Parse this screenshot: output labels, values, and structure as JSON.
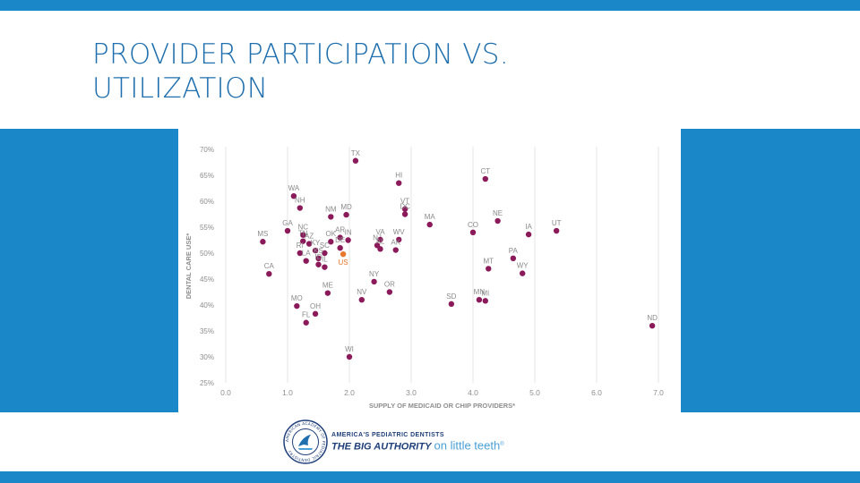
{
  "slide": {
    "title_line1": "PROVIDER PARTICIPATION VS.",
    "title_line2": "UTILIZATION"
  },
  "logo": {
    "seal_text": "AMERICAN ACADEMY OF PEDIATRIC DENTISTRY",
    "line1": "AMERICA'S PEDIATRIC DENTISTS",
    "line2_strong": "THE BIG AUTHORITY",
    "line2_light": "on little teeth",
    "trademark": "®"
  },
  "colors": {
    "brand_blue": "#1a87c8",
    "title_blue": "#1f6fae",
    "point": "#8b1a5a",
    "us_point": "#e8762c",
    "axis_text": "#8e8e8e",
    "grid": "#e4e4e4"
  },
  "chart_data": {
    "type": "scatter",
    "xlabel": "SUPPLY OF MEDICAID OR CHIP PROVIDERS*",
    "ylabel": "DENTAL CARE USE*",
    "xlim": [
      0,
      7
    ],
    "ylim": [
      25,
      70
    ],
    "xticks": [
      "0.0",
      "1.0",
      "2.0",
      "3.0",
      "4.0",
      "5.0",
      "6.0",
      "7.0"
    ],
    "yticks": [
      "25%",
      "30%",
      "35%",
      "40%",
      "45%",
      "50%",
      "55%",
      "60%",
      "65%",
      "70%"
    ],
    "grid": "vertical",
    "points": [
      {
        "label": "TX",
        "x": 2.1,
        "y": 67.8
      },
      {
        "label": "HI",
        "x": 2.8,
        "y": 63.5
      },
      {
        "label": "CT",
        "x": 4.2,
        "y": 64.3
      },
      {
        "label": "WA",
        "x": 1.1,
        "y": 61.0
      },
      {
        "label": "NH",
        "x": 1.2,
        "y": 58.7
      },
      {
        "label": "NM",
        "x": 1.7,
        "y": 57.0
      },
      {
        "label": "MD",
        "x": 1.95,
        "y": 57.4
      },
      {
        "label": "VT",
        "x": 2.9,
        "y": 58.5
      },
      {
        "label": "MA",
        "x": 3.3,
        "y": 55.5
      },
      {
        "label": "NE",
        "x": 4.4,
        "y": 56.2
      },
      {
        "label": "CO",
        "x": 4.0,
        "y": 54.0
      },
      {
        "label": "IA",
        "x": 4.9,
        "y": 53.6
      },
      {
        "label": "UT",
        "x": 5.35,
        "y": 54.3
      },
      {
        "label": "MS",
        "x": 0.6,
        "y": 52.2
      },
      {
        "label": "GA",
        "x": 1.0,
        "y": 54.3
      },
      {
        "label": "NC",
        "x": 1.25,
        "y": 53.5
      },
      {
        "label": "TN",
        "x": 1.25,
        "y": 52.3
      },
      {
        "label": "AZ",
        "x": 1.35,
        "y": 51.8
      },
      {
        "label": "RI",
        "x": 1.2,
        "y": 50.0
      },
      {
        "label": "KY",
        "x": 1.45,
        "y": 50.5
      },
      {
        "label": "OK",
        "x": 1.7,
        "y": 52.2
      },
      {
        "label": "AR",
        "x": 1.85,
        "y": 53.0
      },
      {
        "label": "IN",
        "x": 1.98,
        "y": 52.5
      },
      {
        "label": "DE",
        "x": 1.85,
        "y": 51.0
      },
      {
        "label": "SC",
        "x": 1.6,
        "y": 50.0
      },
      {
        "label": "KS",
        "x": 1.5,
        "y": 49.0
      },
      {
        "label": "LA",
        "x": 1.3,
        "y": 48.5
      },
      {
        "label": "CA",
        "x": 0.7,
        "y": 46.0
      },
      {
        "label": "ID",
        "x": 1.5,
        "y": 47.8
      },
      {
        "label": "IL",
        "x": 1.6,
        "y": 47.3
      },
      {
        "label": "US",
        "x": 1.9,
        "y": 49.8
      },
      {
        "label": "NJ",
        "x": 2.45,
        "y": 51.5
      },
      {
        "label": "VA",
        "x": 2.5,
        "y": 52.6
      },
      {
        "label": "WV",
        "x": 2.8,
        "y": 52.6
      },
      {
        "label": "DC",
        "x": 2.9,
        "y": 57.5
      },
      {
        "label": "AL",
        "x": 2.5,
        "y": 50.8
      },
      {
        "label": "AK",
        "x": 2.75,
        "y": 50.6
      },
      {
        "label": "PA",
        "x": 4.65,
        "y": 49.0
      },
      {
        "label": "MT",
        "x": 4.25,
        "y": 47.0
      },
      {
        "label": "WY",
        "x": 4.8,
        "y": 46.1
      },
      {
        "label": "NY",
        "x": 2.4,
        "y": 44.5
      },
      {
        "label": "OR",
        "x": 2.65,
        "y": 42.5
      },
      {
        "label": "ME",
        "x": 1.65,
        "y": 42.3
      },
      {
        "label": "NV",
        "x": 2.2,
        "y": 41.0
      },
      {
        "label": "SD",
        "x": 3.65,
        "y": 40.2
      },
      {
        "label": "MN",
        "x": 4.1,
        "y": 41.0
      },
      {
        "label": "MI",
        "x": 4.2,
        "y": 40.8
      },
      {
        "label": "MO",
        "x": 1.15,
        "y": 39.8
      },
      {
        "label": "OH",
        "x": 1.45,
        "y": 38.3
      },
      {
        "label": "FL",
        "x": 1.3,
        "y": 36.6
      },
      {
        "label": "WI",
        "x": 2.0,
        "y": 30.0
      },
      {
        "label": "ND",
        "x": 6.9,
        "y": 36.0
      }
    ]
  }
}
